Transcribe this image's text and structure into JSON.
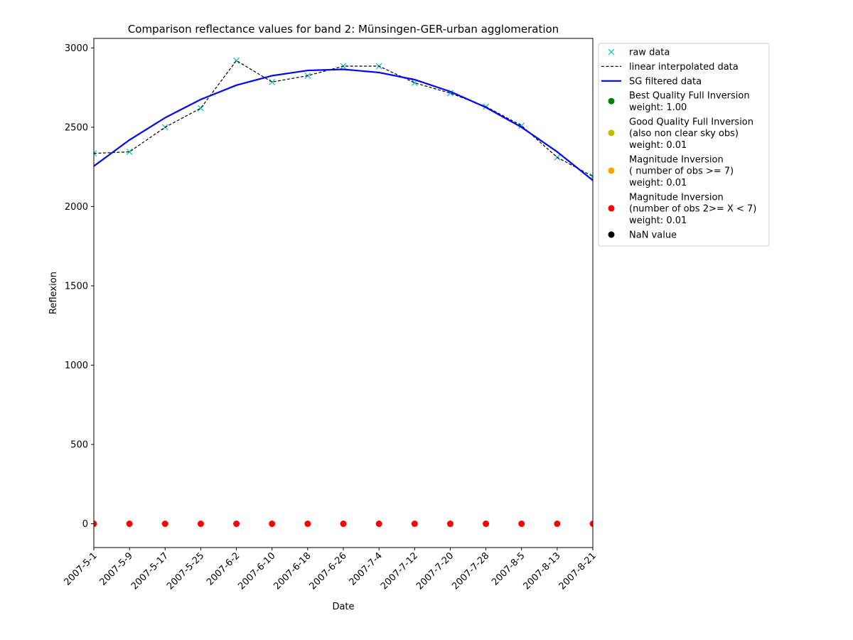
{
  "chart_data": {
    "type": "line",
    "title": "Comparison reflectance values for band 2: Münsingen-GER-urban agglomeration",
    "xlabel": "Date",
    "ylabel": "Reflexion",
    "categories": [
      "2007-5-1",
      "2007-5-9",
      "2007-5-17",
      "2007-5-25",
      "2007-6-2",
      "2007-6-10",
      "2007-6-18",
      "2007-6-26",
      "2007-7-4",
      "2007-7-12",
      "2007-7-20",
      "2007-7-28",
      "2007-8-5",
      "2007-8-13",
      "2007-8-21"
    ],
    "ylim": [
      -150,
      3060
    ],
    "yticks": [
      0,
      500,
      1000,
      1500,
      2000,
      2500,
      3000
    ],
    "grid": false,
    "legend_position": "outside-right",
    "series": [
      {
        "name": "raw data",
        "style": "marker-x",
        "color": "#00bfbf",
        "values": [
          2335,
          2345,
          2500,
          2620,
          2920,
          2785,
          2825,
          2885,
          2885,
          2780,
          2715,
          2630,
          2510,
          2310,
          2190
        ]
      },
      {
        "name": "linear interpolated data",
        "style": "dashed-line",
        "color": "#000000",
        "values": [
          2335,
          2345,
          2500,
          2620,
          2920,
          2785,
          2825,
          2885,
          2885,
          2780,
          2715,
          2630,
          2510,
          2310,
          2190
        ]
      },
      {
        "name": "SG filtered data",
        "style": "solid-line",
        "color": "#0000ff",
        "values": [
          2255,
          2420,
          2560,
          2675,
          2765,
          2825,
          2858,
          2865,
          2845,
          2800,
          2725,
          2625,
          2500,
          2345,
          2165
        ]
      },
      {
        "name": "Magnitude Inversion\n(number of obs 2>= X < 7)\nweight: 0.01",
        "style": "marker-dot",
        "color": "#ff0000",
        "values": [
          0,
          0,
          0,
          0,
          0,
          0,
          0,
          0,
          0,
          0,
          0,
          0,
          0,
          0,
          0
        ]
      }
    ],
    "legend": [
      {
        "label": "raw data",
        "symbol": "x",
        "color": "#00bfbf"
      },
      {
        "label": "linear interpolated data",
        "symbol": "dashed",
        "color": "#000000"
      },
      {
        "label": "SG filtered data",
        "symbol": "line",
        "color": "#0000ff"
      },
      {
        "label": "Best Quality Full Inversion\nweight: 1.00",
        "symbol": "dot",
        "color": "#008000"
      },
      {
        "label": "Good Quality Full Inversion\n(also non clear sky obs)\nweight: 0.01",
        "symbol": "dot",
        "color": "#bfbf00"
      },
      {
        "label": "Magnitude Inversion\n( number of obs >= 7)\nweight: 0.01",
        "symbol": "dot",
        "color": "#ffa500"
      },
      {
        "label": "Magnitude Inversion\n(number of obs 2>= X < 7)\nweight: 0.01",
        "symbol": "dot",
        "color": "#ff0000"
      },
      {
        "label": "NaN value",
        "symbol": "dot",
        "color": "#000000"
      }
    ]
  }
}
